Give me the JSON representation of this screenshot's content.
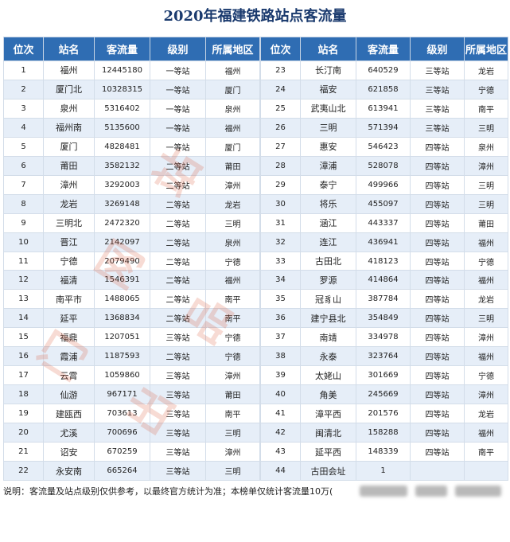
{
  "title": "2020年福建铁路站点客流量",
  "headers": [
    "位次",
    "站名",
    "客流量",
    "级别",
    "所属地区"
  ],
  "left_rows": [
    [
      "1",
      "福州",
      "12445180",
      "一等站",
      "福州"
    ],
    [
      "2",
      "厦门北",
      "10328315",
      "一等站",
      "厦门"
    ],
    [
      "3",
      "泉州",
      "5316402",
      "一等站",
      "泉州"
    ],
    [
      "4",
      "福州南",
      "5135600",
      "一等站",
      "福州"
    ],
    [
      "5",
      "厦门",
      "4828481",
      "一等站",
      "厦门"
    ],
    [
      "6",
      "莆田",
      "3582132",
      "二等站",
      "莆田"
    ],
    [
      "7",
      "漳州",
      "3292003",
      "二等站",
      "漳州"
    ],
    [
      "8",
      "龙岩",
      "3269148",
      "二等站",
      "龙岩"
    ],
    [
      "9",
      "三明北",
      "2472320",
      "二等站",
      "三明"
    ],
    [
      "10",
      "晋江",
      "2142097",
      "二等站",
      "泉州"
    ],
    [
      "11",
      "宁德",
      "2079490",
      "二等站",
      "宁德"
    ],
    [
      "12",
      "福清",
      "1546391",
      "二等站",
      "福州"
    ],
    [
      "13",
      "南平市",
      "1488065",
      "二等站",
      "南平"
    ],
    [
      "14",
      "延平",
      "1368834",
      "二等站",
      "南平"
    ],
    [
      "15",
      "福鼎",
      "1207051",
      "三等站",
      "宁德"
    ],
    [
      "16",
      "霞浦",
      "1187593",
      "二等站",
      "宁德"
    ],
    [
      "17",
      "云霄",
      "1059860",
      "三等站",
      "漳州"
    ],
    [
      "18",
      "仙游",
      "967171",
      "三等站",
      "莆田"
    ],
    [
      "19",
      "建瓯西",
      "703613",
      "三等站",
      "南平"
    ],
    [
      "20",
      "尤溪",
      "700696",
      "三等站",
      "三明"
    ],
    [
      "21",
      "诏安",
      "670259",
      "三等站",
      "漳州"
    ],
    [
      "22",
      "永安南",
      "665264",
      "三等站",
      "三明"
    ]
  ],
  "right_rows": [
    [
      "23",
      "长汀南",
      "640529",
      "三等站",
      "龙岩"
    ],
    [
      "24",
      "福安",
      "621858",
      "三等站",
      "宁德"
    ],
    [
      "25",
      "武夷山北",
      "613941",
      "三等站",
      "南平"
    ],
    [
      "26",
      "三明",
      "571394",
      "三等站",
      "三明"
    ],
    [
      "27",
      "惠安",
      "546423",
      "四等站",
      "泉州"
    ],
    [
      "28",
      "漳浦",
      "528078",
      "四等站",
      "漳州"
    ],
    [
      "29",
      "泰宁",
      "499966",
      "四等站",
      "三明"
    ],
    [
      "30",
      "将乐",
      "455097",
      "四等站",
      "三明"
    ],
    [
      "31",
      "涵江",
      "443337",
      "四等站",
      "莆田"
    ],
    [
      "32",
      "连江",
      "436941",
      "四等站",
      "福州"
    ],
    [
      "33",
      "古田北",
      "418123",
      "四等站",
      "宁德"
    ],
    [
      "34",
      "罗源",
      "414864",
      "四等站",
      "福州"
    ],
    [
      "35",
      "冠豸山",
      "387784",
      "四等站",
      "龙岩"
    ],
    [
      "36",
      "建宁县北",
      "354849",
      "四等站",
      "三明"
    ],
    [
      "37",
      "南靖",
      "334978",
      "四等站",
      "漳州"
    ],
    [
      "38",
      "永泰",
      "323764",
      "四等站",
      "福州"
    ],
    [
      "39",
      "太姥山",
      "301669",
      "四等站",
      "宁德"
    ],
    [
      "40",
      "角美",
      "245669",
      "四等站",
      "漳州"
    ],
    [
      "41",
      "漳平西",
      "201576",
      "四等站",
      "龙岩"
    ],
    [
      "42",
      "闽清北",
      "158288",
      "四等站",
      "福州"
    ],
    [
      "43",
      "延平西",
      "148339",
      "四等站",
      "南平"
    ],
    [
      "44",
      "古田会址",
      "1",
      "",
      ""
    ]
  ],
  "watermark": "门 网 站 出 品",
  "footer": "说明：客流量及站点级别仅供参考，以最终官方统计为准；本榜单仅统计客流量10万("
}
